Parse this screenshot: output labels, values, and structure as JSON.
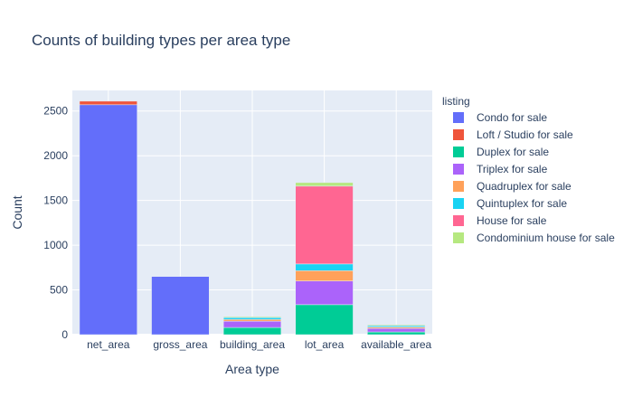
{
  "chart_data": {
    "type": "bar",
    "barmode": "stack",
    "title": "Counts of building types per area type",
    "xlabel": "Area type",
    "ylabel": "Count",
    "ylim": [
      0,
      2730
    ],
    "yticks": [
      0,
      500,
      1000,
      1500,
      2000,
      2500
    ],
    "grid": true,
    "legend_title": "listing",
    "legend_position": "right",
    "categories": [
      "net_area",
      "gross_area",
      "building_area",
      "lot_area",
      "available_area"
    ],
    "series": [
      {
        "name": "Condo for sale",
        "color": "#636efa",
        "values": [
          2570,
          650,
          0,
          0,
          0
        ]
      },
      {
        "name": "Loft / Studio for sale",
        "color": "#ef553b",
        "values": [
          40,
          0,
          0,
          0,
          0
        ]
      },
      {
        "name": "Duplex for sale",
        "color": "#00cc96",
        "values": [
          0,
          0,
          80,
          335,
          30
        ]
      },
      {
        "name": "Triplex for sale",
        "color": "#ab63fa",
        "values": [
          0,
          0,
          70,
          265,
          40
        ]
      },
      {
        "name": "Quadruplex for sale",
        "color": "#ffa15a",
        "values": [
          0,
          0,
          20,
          115,
          15
        ]
      },
      {
        "name": "Quintuplex for sale",
        "color": "#19d3f3",
        "values": [
          0,
          0,
          20,
          75,
          15
        ]
      },
      {
        "name": "House for sale",
        "color": "#ff6692",
        "values": [
          0,
          0,
          0,
          870,
          0
        ]
      },
      {
        "name": "Condominium house for sale",
        "color": "#b6e880",
        "values": [
          0,
          0,
          10,
          40,
          10
        ]
      }
    ]
  }
}
